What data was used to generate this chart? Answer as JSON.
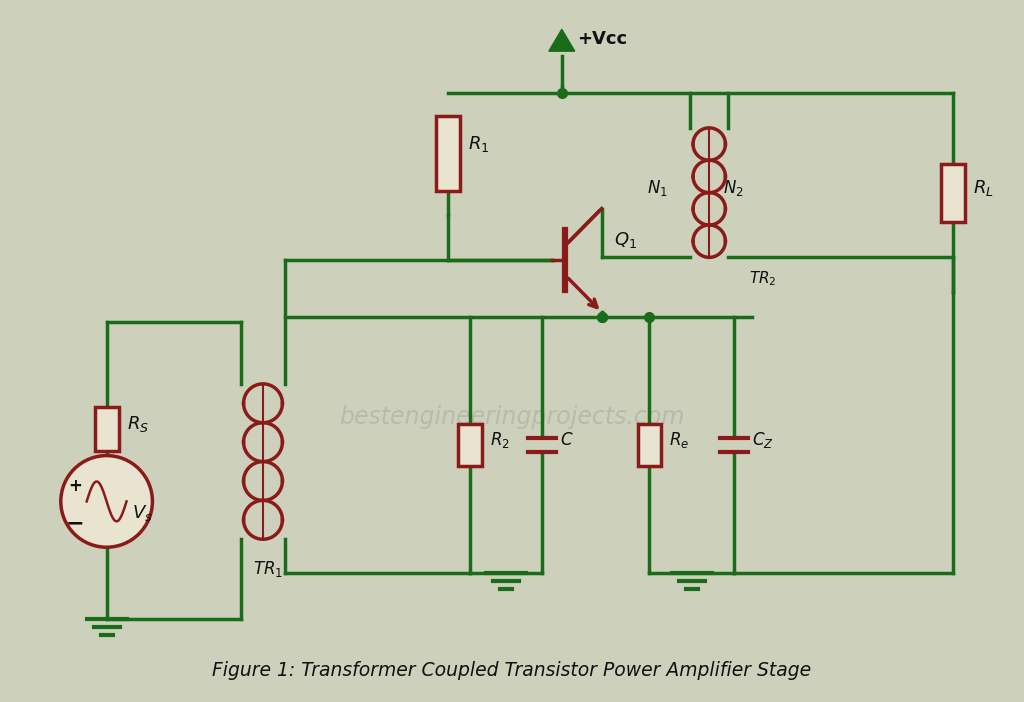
{
  "bg_color": "#cdd1bc",
  "wire_color": "#1a6b1a",
  "component_color": "#8b1a1a",
  "component_fill": "#e8e4d0",
  "text_color": "#111111",
  "fig_width": 10.24,
  "fig_height": 7.02,
  "title": "Figure 1: Transformer Coupled Transistor Power Amplifier Stage",
  "title_fontsize": 13.5,
  "watermark": "bestengineeringprojects.com",
  "lw_wire": 2.5,
  "lw_comp": 2.5
}
